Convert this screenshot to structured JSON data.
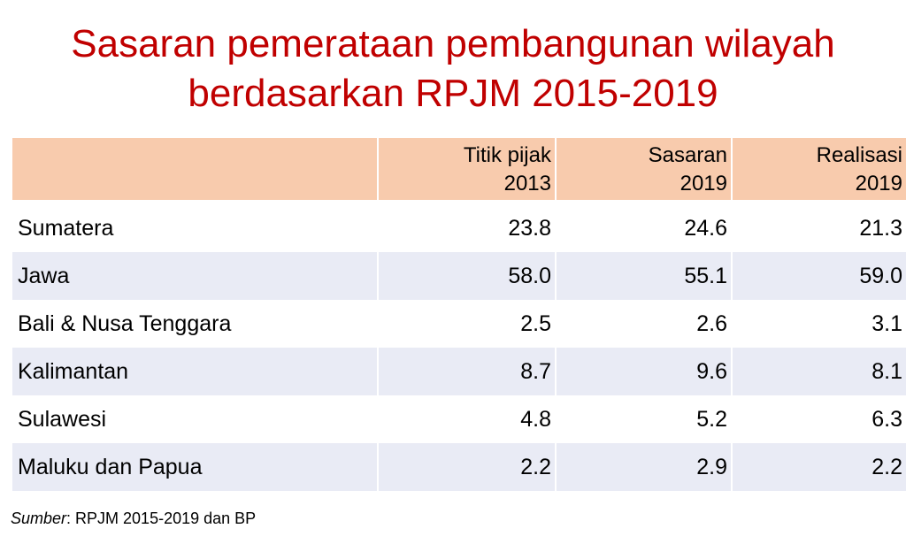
{
  "title": {
    "line1": "Sasaran pemerataan pembangunan wilayah",
    "line2": "berdasarkan RPJM 2015-2019"
  },
  "table": {
    "headers": [
      {
        "line1": "Titik pijak",
        "line2": "2013"
      },
      {
        "line1": "Sasaran",
        "line2": "2019"
      },
      {
        "line1": "Realisasi",
        "line2": "2019"
      }
    ],
    "rows": [
      {
        "region": "Sumatera",
        "v1": "23.8",
        "v2": "24.6",
        "v3": "21.3"
      },
      {
        "region": "Jawa",
        "v1": "58.0",
        "v2": "55.1",
        "v3": "59.0"
      },
      {
        "region": "Bali & Nusa Tenggara",
        "v1": "2.5",
        "v2": "2.6",
        "v3": "3.1"
      },
      {
        "region": "Kalimantan",
        "v1": "8.7",
        "v2": "9.6",
        "v3": "8.1"
      },
      {
        "region": "Sulawesi",
        "v1": "4.8",
        "v2": "5.2",
        "v3": "6.3"
      },
      {
        "region": "Maluku dan Papua",
        "v1": "2.2",
        "v2": "2.9",
        "v3": "2.2"
      }
    ]
  },
  "source": {
    "label": "Sumber",
    "text": ": RPJM 2015-2019 dan BP"
  },
  "colors": {
    "title": "#c00000",
    "header_bg": "#f8cbad",
    "shaded_row_bg": "#e9ebf5"
  }
}
